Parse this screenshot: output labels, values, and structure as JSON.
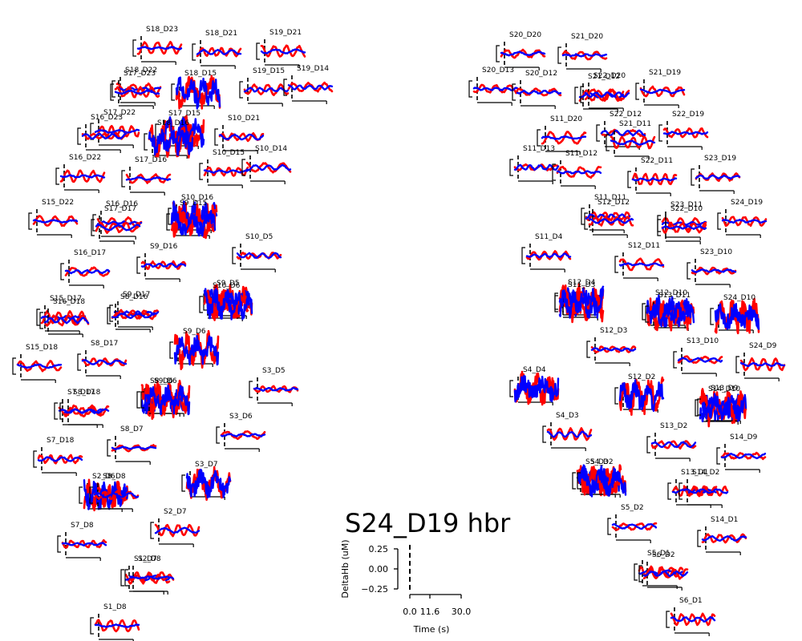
{
  "chart_data": {
    "type": "line",
    "title": "S24_D19 hbr",
    "xlabel": "Time (s)",
    "ylabel": "DeltaHb (uM)",
    "xticks": [
      "0.0",
      "11.6",
      "30.0"
    ],
    "yticks": [
      "0.25",
      "0.00",
      "−0.25"
    ],
    "xlim": [
      0,
      30
    ],
    "ylim": [
      -0.25,
      0.25
    ],
    "series": [
      {
        "color": "#ff0000",
        "role": "hbo"
      },
      {
        "color": "#0000ff",
        "role": "hbr"
      }
    ],
    "channels": [
      {
        "label": "S18_D23"
      },
      {
        "label": "S18_D21"
      },
      {
        "label": "S19_D21"
      },
      {
        "label": "S18_D22"
      },
      {
        "label": "S17_D23"
      },
      {
        "label": "S18_D15"
      },
      {
        "label": "S19_D15"
      },
      {
        "label": "S19_D14"
      },
      {
        "label": "S17_D22"
      },
      {
        "label": "S16_D23"
      },
      {
        "label": "S17_D15"
      },
      {
        "label": "S10_D21"
      },
      {
        "label": "S18_D16"
      },
      {
        "label": "S16_D22"
      },
      {
        "label": "S17_D16"
      },
      {
        "label": "S10_D15"
      },
      {
        "label": "S10_D14"
      },
      {
        "label": "S15_D22"
      },
      {
        "label": "S16_D16"
      },
      {
        "label": "S17_D17"
      },
      {
        "label": "S10_D16"
      },
      {
        "label": "S9_D15"
      },
      {
        "label": "S10_D5"
      },
      {
        "label": "S16_D17"
      },
      {
        "label": "S9_D16"
      },
      {
        "label": "S15_D17"
      },
      {
        "label": "S16_D18"
      },
      {
        "label": "S9_D17"
      },
      {
        "label": "S8_D16"
      },
      {
        "label": "S9_D5"
      },
      {
        "label": "S10_D6"
      },
      {
        "label": "S15_D18"
      },
      {
        "label": "S8_D17"
      },
      {
        "label": "S9_D6"
      },
      {
        "label": "S3_D5"
      },
      {
        "label": "S7_D17"
      },
      {
        "label": "S8_D18"
      },
      {
        "label": "S8_D6"
      },
      {
        "label": "S9_D6"
      },
      {
        "label": "S3_D6"
      },
      {
        "label": "S7_D18"
      },
      {
        "label": "S8_D7"
      },
      {
        "label": "S2_D6"
      },
      {
        "label": "S3_D7"
      },
      {
        "label": "S8_D8"
      },
      {
        "label": "S2_D7"
      },
      {
        "label": "S7_D8"
      },
      {
        "label": "S1_D7"
      },
      {
        "label": "S2_D8"
      },
      {
        "label": "S1_D8"
      },
      {
        "label": "S20_D20"
      },
      {
        "label": "S21_D20"
      },
      {
        "label": "S20_D13"
      },
      {
        "label": "S20_D12"
      },
      {
        "label": "S21_D12"
      },
      {
        "label": "S22_D20"
      },
      {
        "label": "S21_D19"
      },
      {
        "label": "S22_D12"
      },
      {
        "label": "S22_D19"
      },
      {
        "label": "S11_D20"
      },
      {
        "label": "S21_D11"
      },
      {
        "label": "S11_D13"
      },
      {
        "label": "S11_D12"
      },
      {
        "label": "S23_D19"
      },
      {
        "label": "S22_D11"
      },
      {
        "label": "S11_D11"
      },
      {
        "label": "S12_D12"
      },
      {
        "label": "S23_D11"
      },
      {
        "label": "S22_D10"
      },
      {
        "label": "S24_D19"
      },
      {
        "label": "S11_D4"
      },
      {
        "label": "S12_D11"
      },
      {
        "label": "S23_D10"
      },
      {
        "label": "S12_D4"
      },
      {
        "label": "S11_D3"
      },
      {
        "label": "S12_D10"
      },
      {
        "label": "S13_D11"
      },
      {
        "label": "S24_D10"
      },
      {
        "label": "S12_D3"
      },
      {
        "label": "S13_D10"
      },
      {
        "label": "S24_D9"
      },
      {
        "label": "S4_D4"
      },
      {
        "label": "S12_D2"
      },
      {
        "label": "S13_D2"
      },
      {
        "label": "S14_D10"
      },
      {
        "label": "S13_D9"
      },
      {
        "label": "S4_D3"
      },
      {
        "label": "S14_D9"
      },
      {
        "label": "S5_D3"
      },
      {
        "label": "S4_D2"
      },
      {
        "label": "S13_D1"
      },
      {
        "label": "S14_D2"
      },
      {
        "label": "S5_D2"
      },
      {
        "label": "S14_D1"
      },
      {
        "label": "S5_D1"
      },
      {
        "label": "S6_D2"
      },
      {
        "label": "S6_D1"
      }
    ]
  }
}
